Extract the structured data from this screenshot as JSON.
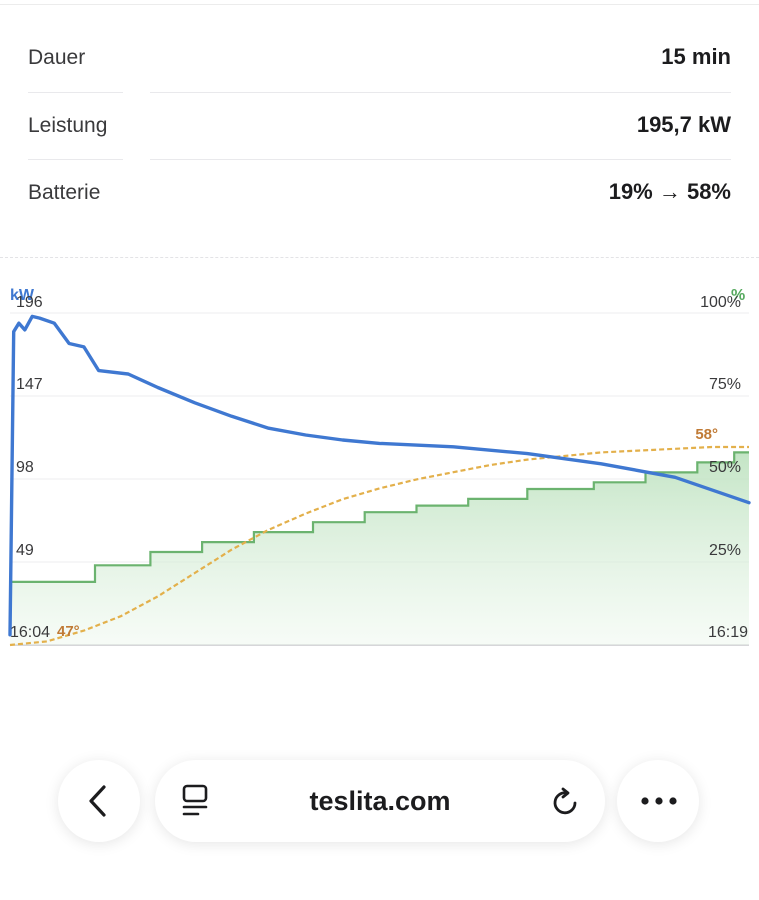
{
  "stats": [
    {
      "label": "Dauer",
      "value": "15 min"
    },
    {
      "label": "Leistung",
      "value": "195,7 kW"
    },
    {
      "label": "Batterie",
      "value": "19% → 58%"
    }
  ],
  "chart": {
    "left_axis_unit": "kW",
    "right_axis_unit": "%",
    "left_ticks": [
      "196",
      "147",
      "98",
      "49"
    ],
    "right_ticks": [
      "100%",
      "75%",
      "50%",
      "25%"
    ],
    "x_start": "16:04",
    "x_end": "16:19",
    "temp_start": "47°",
    "temp_end": "58°",
    "colors": {
      "power": "#3f78d1",
      "battery": "#6bb36f",
      "temperature": "#e3b04b",
      "temp_label": "#c07a35"
    }
  },
  "chart_data": {
    "type": "line",
    "x_range": [
      "16:04",
      "16:19"
    ],
    "series": [
      {
        "axis": "left",
        "unit": "kW",
        "x_frac": [
          0.0,
          0.005,
          0.012,
          0.02,
          0.03,
          0.04,
          0.06,
          0.08,
          0.1,
          0.12,
          0.16,
          0.2,
          0.25,
          0.3,
          0.35,
          0.4,
          0.45,
          0.5,
          0.6,
          0.7,
          0.8,
          0.9,
          1.0
        ],
        "values": [
          6,
          185,
          190,
          186,
          194,
          193,
          190,
          178,
          176,
          162,
          160,
          152,
          143,
          135,
          128,
          124,
          121,
          119,
          117,
          113,
          107,
          99,
          84
        ]
      },
      {
        "axis": "right",
        "unit": "%",
        "x_frac": [
          0.0,
          0.115,
          0.115,
          0.19,
          0.19,
          0.26,
          0.26,
          0.33,
          0.33,
          0.41,
          0.41,
          0.48,
          0.48,
          0.55,
          0.55,
          0.62,
          0.62,
          0.7,
          0.7,
          0.79,
          0.79,
          0.86,
          0.86,
          0.93,
          0.93,
          0.98,
          0.98,
          1.0
        ],
        "values": [
          19,
          19,
          24,
          24,
          28,
          28,
          31,
          31,
          34,
          34,
          37,
          37,
          40,
          40,
          42,
          42,
          44,
          44,
          47,
          47,
          49,
          49,
          52,
          52,
          55,
          55,
          58,
          58
        ]
      },
      {
        "axis": "temperature",
        "unit": "°",
        "x_frac": [
          0.0,
          0.05,
          0.1,
          0.15,
          0.2,
          0.25,
          0.3,
          0.35,
          0.4,
          0.45,
          0.5,
          0.55,
          0.6,
          0.65,
          0.7,
          0.75,
          0.8,
          0.85,
          0.9,
          0.95,
          1.0
        ],
        "values": [
          47,
          47.2,
          47.8,
          48.6,
          49.7,
          51.0,
          52.3,
          53.4,
          54.3,
          55.1,
          55.7,
          56.2,
          56.6,
          57.0,
          57.3,
          57.5,
          57.7,
          57.8,
          57.9,
          58.0,
          58.0
        ]
      }
    ]
  },
  "browser": {
    "url": "teslita.com"
  }
}
